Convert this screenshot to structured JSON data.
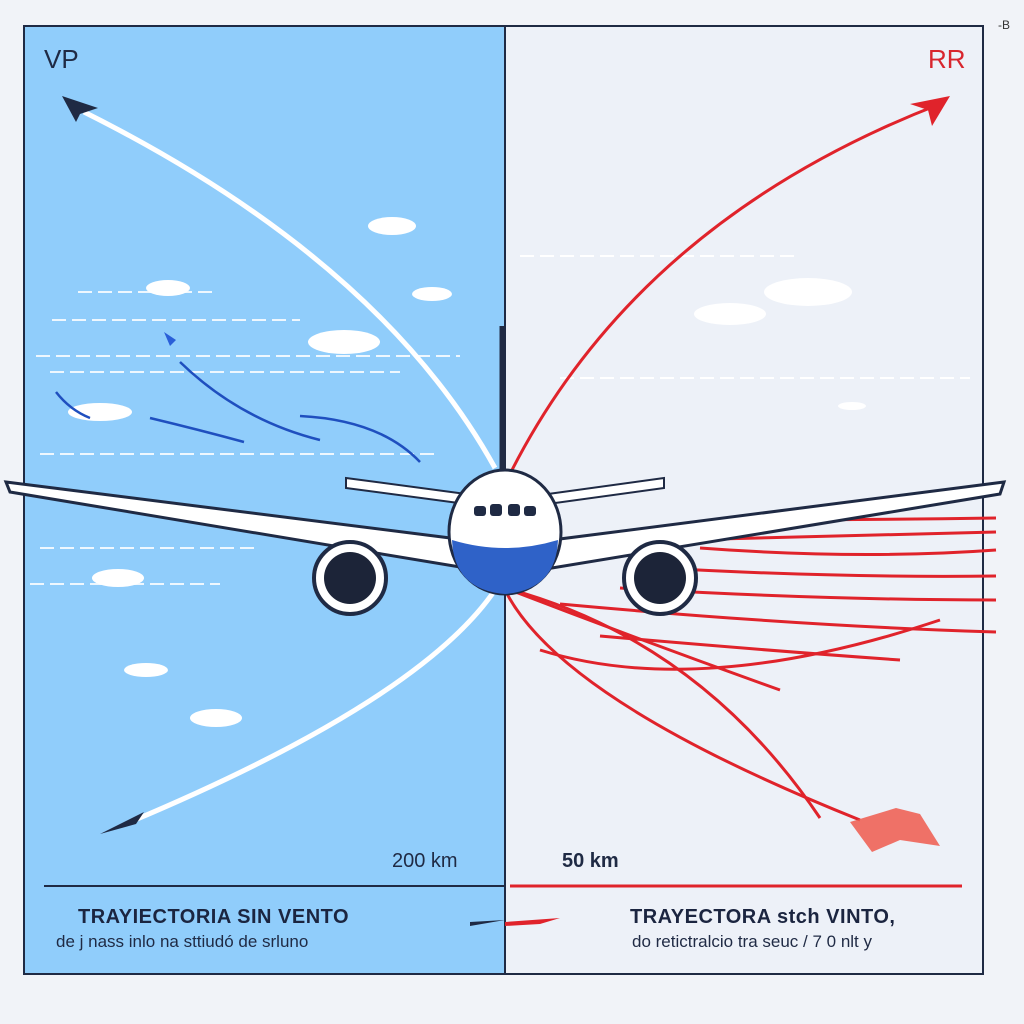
{
  "panels": {
    "left": {
      "label": "VP",
      "distance": "200 km",
      "title": "TRAYIECTORIA SIN VENTO",
      "subtitle": "de j nass inlo na sttiudó de srluno",
      "color": "#90cdfb"
    },
    "right": {
      "label": "RR",
      "distance": "50 km",
      "title": "TRAYECTORA stch VINTO,",
      "subtitle": "do retictralcio tra seuc / 7 0 nlt y",
      "color": "#edf1f8"
    }
  },
  "corner_mark": "-B",
  "colors": {
    "left_trajectory": "#ffffff",
    "right_trajectory": "#e0232b",
    "aircraft_body": "#ffffff",
    "aircraft_belly": "#2f62c8",
    "frame": "#1f2a44"
  },
  "icons": [
    "airplane-icon",
    "arrowhead-icon",
    "cloud-icon",
    "burst-icon"
  ]
}
